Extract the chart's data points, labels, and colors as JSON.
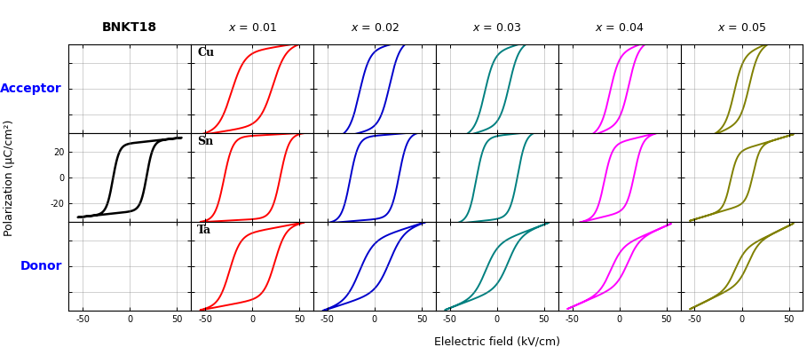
{
  "title": "BNKT18",
  "col_labels": [
    "x = 0.01",
    "x = 0.02",
    "x = 0.03",
    "x = 0.04",
    "x = 0.05"
  ],
  "row_labels": [
    "Cu",
    "Sn",
    "Ta"
  ],
  "ylabel": "Polarization (μC/cm²)",
  "xlabel": "Elelectric field (kV/cm)",
  "colors_by_col": [
    "#ff0000",
    "#0000cc",
    "#008080",
    "#ff00ff",
    "#808000"
  ],
  "bnkt18_color": "#000000",
  "ylim": [
    -35,
    35
  ],
  "xlim": [
    -65,
    65
  ],
  "yticks": [
    -20,
    0,
    20
  ],
  "xticks": [
    -50,
    0,
    50
  ],
  "loop_params": {
    "Cu_x01": {
      "Pmax": 30,
      "Pr": 17,
      "Ec": 22,
      "tilt": 0.12,
      "sharpness": 2.5
    },
    "Cu_x02": {
      "Pmax": 32,
      "Pr": 19,
      "Ec": 16,
      "tilt": 0.18,
      "sharpness": 2.2
    },
    "Cu_x03": {
      "Pmax": 30,
      "Pr": 17,
      "Ec": 13,
      "tilt": 0.22,
      "sharpness": 2.0
    },
    "Cu_x04": {
      "Pmax": 29,
      "Pr": 15,
      "Ec": 10,
      "tilt": 0.28,
      "sharpness": 1.8
    },
    "Cu_x05": {
      "Pmax": 27,
      "Pr": 13,
      "Ec": 8,
      "tilt": 0.32,
      "sharpness": 1.6
    },
    "Sn_x01": {
      "Pmax": 33,
      "Pr": 24,
      "Ec": 30,
      "tilt": 0.04,
      "sharpness": 3.5
    },
    "Sn_x02": {
      "Pmax": 33,
      "Pr": 24,
      "Ec": 26,
      "tilt": 0.06,
      "sharpness": 3.2
    },
    "Sn_x03": {
      "Pmax": 33,
      "Pr": 23,
      "Ec": 22,
      "tilt": 0.08,
      "sharpness": 3.0
    },
    "Sn_x04": {
      "Pmax": 28,
      "Pr": 18,
      "Ec": 16,
      "tilt": 0.18,
      "sharpness": 2.5
    },
    "Sn_x05": {
      "Pmax": 22,
      "Pr": 14,
      "Ec": 12,
      "tilt": 0.22,
      "sharpness": 2.2
    },
    "Ta_x01": {
      "Pmax": 27,
      "Pr": 17,
      "Ec": 24,
      "tilt": 0.14,
      "sharpness": 2.8
    },
    "Ta_x02": {
      "Pmax": 22,
      "Pr": 11,
      "Ec": 16,
      "tilt": 0.24,
      "sharpness": 2.0
    },
    "Ta_x03": {
      "Pmax": 19,
      "Pr": 9,
      "Ec": 12,
      "tilt": 0.28,
      "sharpness": 1.8
    },
    "Ta_x04": {
      "Pmax": 16,
      "Pr": 7,
      "Ec": 9,
      "tilt": 0.32,
      "sharpness": 1.6
    },
    "Ta_x05": {
      "Pmax": 14,
      "Pr": 6,
      "Ec": 7,
      "tilt": 0.36,
      "sharpness": 1.4
    }
  },
  "bnkt18_loop": {
    "Pmax": 27,
    "Pr": 20,
    "Ec": 18,
    "tilt": 0.08,
    "sharpness": 2.8
  }
}
